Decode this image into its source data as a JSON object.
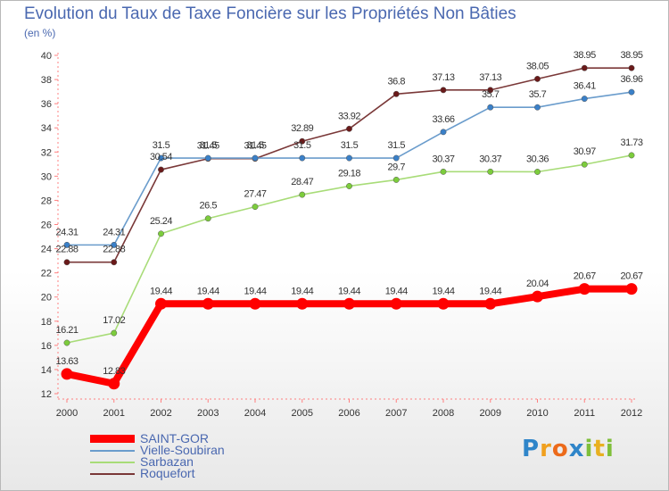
{
  "title": "Evolution du Taux de Taxe Foncière sur les Propriétés Non Bâties",
  "subtitle": "(en %)",
  "brand": {
    "letters": [
      {
        "char": "P",
        "color": "#2f85c9"
      },
      {
        "char": "r",
        "color": "#f0a01e"
      },
      {
        "char": "o",
        "color": "#ec6a1a"
      },
      {
        "char": "x",
        "color": "#2f85c9"
      },
      {
        "char": "i",
        "color": "#7fbf3a"
      },
      {
        "char": "t",
        "color": "#e8b020"
      },
      {
        "char": "i",
        "color": "#7fbf3a"
      }
    ]
  },
  "chart_data": {
    "type": "line",
    "title": "Evolution du Taux de Taxe Foncière sur les Propriétés Non Bâties",
    "ylabel": "(en %)",
    "xlabel": "",
    "categories": [
      "2000",
      "2001",
      "2002",
      "2003",
      "2004",
      "2005",
      "2006",
      "2007",
      "2008",
      "2009",
      "2010",
      "2011",
      "2012"
    ],
    "ylim": [
      12,
      40
    ],
    "yticks": [
      "12",
      "14",
      "16",
      "18",
      "20",
      "22",
      "24",
      "26",
      "28",
      "30",
      "32",
      "34",
      "36",
      "38",
      "40"
    ],
    "series": [
      {
        "name": "SAINT-GOR",
        "color": "#ff0000",
        "marker": "#ff0000",
        "values": [
          13.63,
          12.83,
          19.44,
          19.44,
          19.44,
          19.44,
          19.44,
          19.44,
          19.44,
          19.44,
          20.04,
          20.67,
          20.67
        ],
        "labels": [
          "13.63",
          "12.83",
          "19.44",
          "19.44",
          "19.44",
          "19.44",
          "19.44",
          "19.44",
          "19.44",
          "19.44",
          "20.04",
          "20.67",
          "20.67"
        ]
      },
      {
        "name": "Vielle-Soubiran",
        "color": "#6a9ccc",
        "marker": "#3a80c8",
        "values": [
          24.31,
          24.31,
          31.5,
          31.5,
          31.5,
          31.5,
          31.5,
          31.5,
          33.66,
          35.7,
          35.7,
          36.41,
          36.96
        ],
        "labels": [
          "24.31",
          "24.31",
          "31.5",
          "31.5",
          "31.5",
          "31.5",
          "31.5",
          "31.5",
          "33.66",
          "35.7",
          "35.7",
          "36.41",
          "36.96"
        ]
      },
      {
        "name": "Sarbazan",
        "color": "#a8dc78",
        "marker": "#7ccc3c",
        "values": [
          16.21,
          17.02,
          25.24,
          26.5,
          27.47,
          28.47,
          29.18,
          29.7,
          30.37,
          30.37,
          30.36,
          30.97,
          31.73
        ],
        "labels": [
          "16.21",
          "17.02",
          "25.24",
          "26.5",
          "27.47",
          "28.47",
          "29.18",
          "29.7",
          "30.37",
          "30.37",
          "30.36",
          "30.97",
          "31.73"
        ]
      },
      {
        "name": "Roquefort",
        "color": "#7a3838",
        "marker": "#6a1a1a",
        "values": [
          22.88,
          22.88,
          30.54,
          31.45,
          31.45,
          32.89,
          33.92,
          36.8,
          37.13,
          37.13,
          38.05,
          38.95,
          38.95
        ],
        "labels": [
          "22.88",
          "22.88",
          "30.54",
          "31.45",
          "31.45",
          "32.89",
          "33.92",
          "36.8",
          "37.13",
          "37.13",
          "38.05",
          "38.95",
          "38.95"
        ]
      }
    ],
    "grid": false,
    "legend": "bottom-left"
  }
}
